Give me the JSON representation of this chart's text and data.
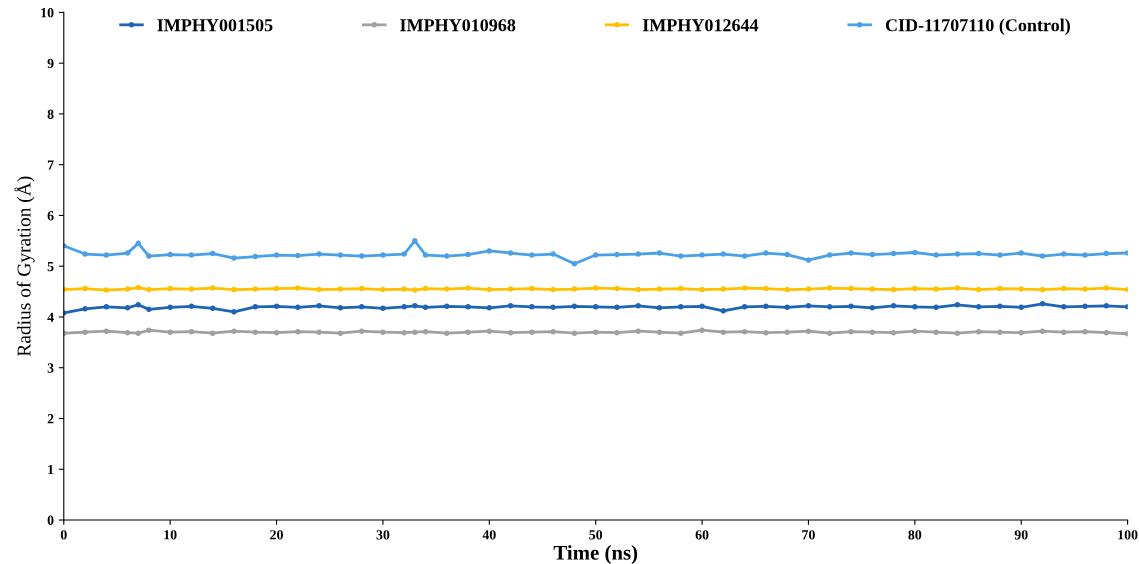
{
  "chart_data": {
    "type": "line",
    "xlabel": "Time (ns)",
    "ylabel": "Radius of Gyration (Å)",
    "x": [
      0,
      2,
      4,
      6,
      7,
      8,
      10,
      12,
      14,
      16,
      18,
      20,
      22,
      24,
      26,
      28,
      30,
      32,
      33,
      34,
      36,
      38,
      40,
      42,
      44,
      46,
      48,
      50,
      52,
      54,
      56,
      58,
      60,
      62,
      64,
      66,
      68,
      70,
      72,
      74,
      76,
      78,
      80,
      82,
      84,
      86,
      88,
      90,
      92,
      94,
      96,
      98,
      100
    ],
    "xlim": [
      0,
      100
    ],
    "xticks": [
      0,
      10,
      20,
      30,
      40,
      50,
      60,
      70,
      80,
      90,
      100
    ],
    "ylim": [
      0,
      10
    ],
    "yticks": [
      0,
      1,
      2,
      3,
      4,
      5,
      6,
      7,
      8,
      9,
      10
    ],
    "grid": false,
    "legend": "top",
    "marker": "circle",
    "line_style": "solid",
    "series": [
      {
        "name": "IMPHY001505",
        "color": "#1f64b4",
        "values": [
          4.08,
          4.16,
          4.2,
          4.18,
          4.24,
          4.15,
          4.19,
          4.21,
          4.17,
          4.1,
          4.2,
          4.21,
          4.19,
          4.22,
          4.18,
          4.2,
          4.17,
          4.2,
          4.22,
          4.19,
          4.21,
          4.2,
          4.18,
          4.22,
          4.2,
          4.19,
          4.21,
          4.2,
          4.19,
          4.22,
          4.18,
          4.2,
          4.21,
          4.12,
          4.2,
          4.21,
          4.19,
          4.22,
          4.2,
          4.21,
          4.18,
          4.22,
          4.2,
          4.19,
          4.24,
          4.2,
          4.21,
          4.19,
          4.26,
          4.2,
          4.21,
          4.22,
          4.2
        ]
      },
      {
        "name": "IMPHY010968",
        "color": "#a0a0a0",
        "values": [
          3.68,
          3.7,
          3.72,
          3.69,
          3.68,
          3.74,
          3.7,
          3.71,
          3.68,
          3.72,
          3.7,
          3.69,
          3.71,
          3.7,
          3.68,
          3.72,
          3.7,
          3.69,
          3.7,
          3.71,
          3.68,
          3.7,
          3.72,
          3.69,
          3.7,
          3.71,
          3.68,
          3.7,
          3.69,
          3.72,
          3.7,
          3.68,
          3.74,
          3.7,
          3.71,
          3.69,
          3.7,
          3.72,
          3.68,
          3.71,
          3.7,
          3.69,
          3.72,
          3.7,
          3.68,
          3.71,
          3.7,
          3.69,
          3.72,
          3.7,
          3.71,
          3.69,
          3.67
        ]
      },
      {
        "name": "IMPHY012644",
        "color": "#ffc000",
        "values": [
          4.54,
          4.56,
          4.53,
          4.55,
          4.58,
          4.54,
          4.56,
          4.55,
          4.57,
          4.54,
          4.55,
          4.56,
          4.57,
          4.54,
          4.55,
          4.56,
          4.54,
          4.55,
          4.53,
          4.56,
          4.55,
          4.57,
          4.54,
          4.55,
          4.56,
          4.54,
          4.55,
          4.57,
          4.56,
          4.54,
          4.55,
          4.56,
          4.54,
          4.55,
          4.57,
          4.56,
          4.54,
          4.55,
          4.57,
          4.56,
          4.55,
          4.54,
          4.56,
          4.55,
          4.57,
          4.54,
          4.56,
          4.55,
          4.54,
          4.56,
          4.55,
          4.57,
          4.54
        ]
      },
      {
        "name": "CID-11707110 (Control)",
        "color": "#4aa0e6",
        "values": [
          5.4,
          5.24,
          5.22,
          5.26,
          5.45,
          5.2,
          5.23,
          5.22,
          5.25,
          5.16,
          5.19,
          5.22,
          5.21,
          5.24,
          5.22,
          5.2,
          5.22,
          5.24,
          5.5,
          5.22,
          5.2,
          5.23,
          5.3,
          5.26,
          5.22,
          5.24,
          5.05,
          5.22,
          5.23,
          5.24,
          5.26,
          5.2,
          5.22,
          5.24,
          5.2,
          5.26,
          5.23,
          5.12,
          5.22,
          5.26,
          5.23,
          5.25,
          5.27,
          5.22,
          5.24,
          5.25,
          5.22,
          5.26,
          5.2,
          5.24,
          5.22,
          5.25,
          5.26
        ]
      }
    ]
  }
}
